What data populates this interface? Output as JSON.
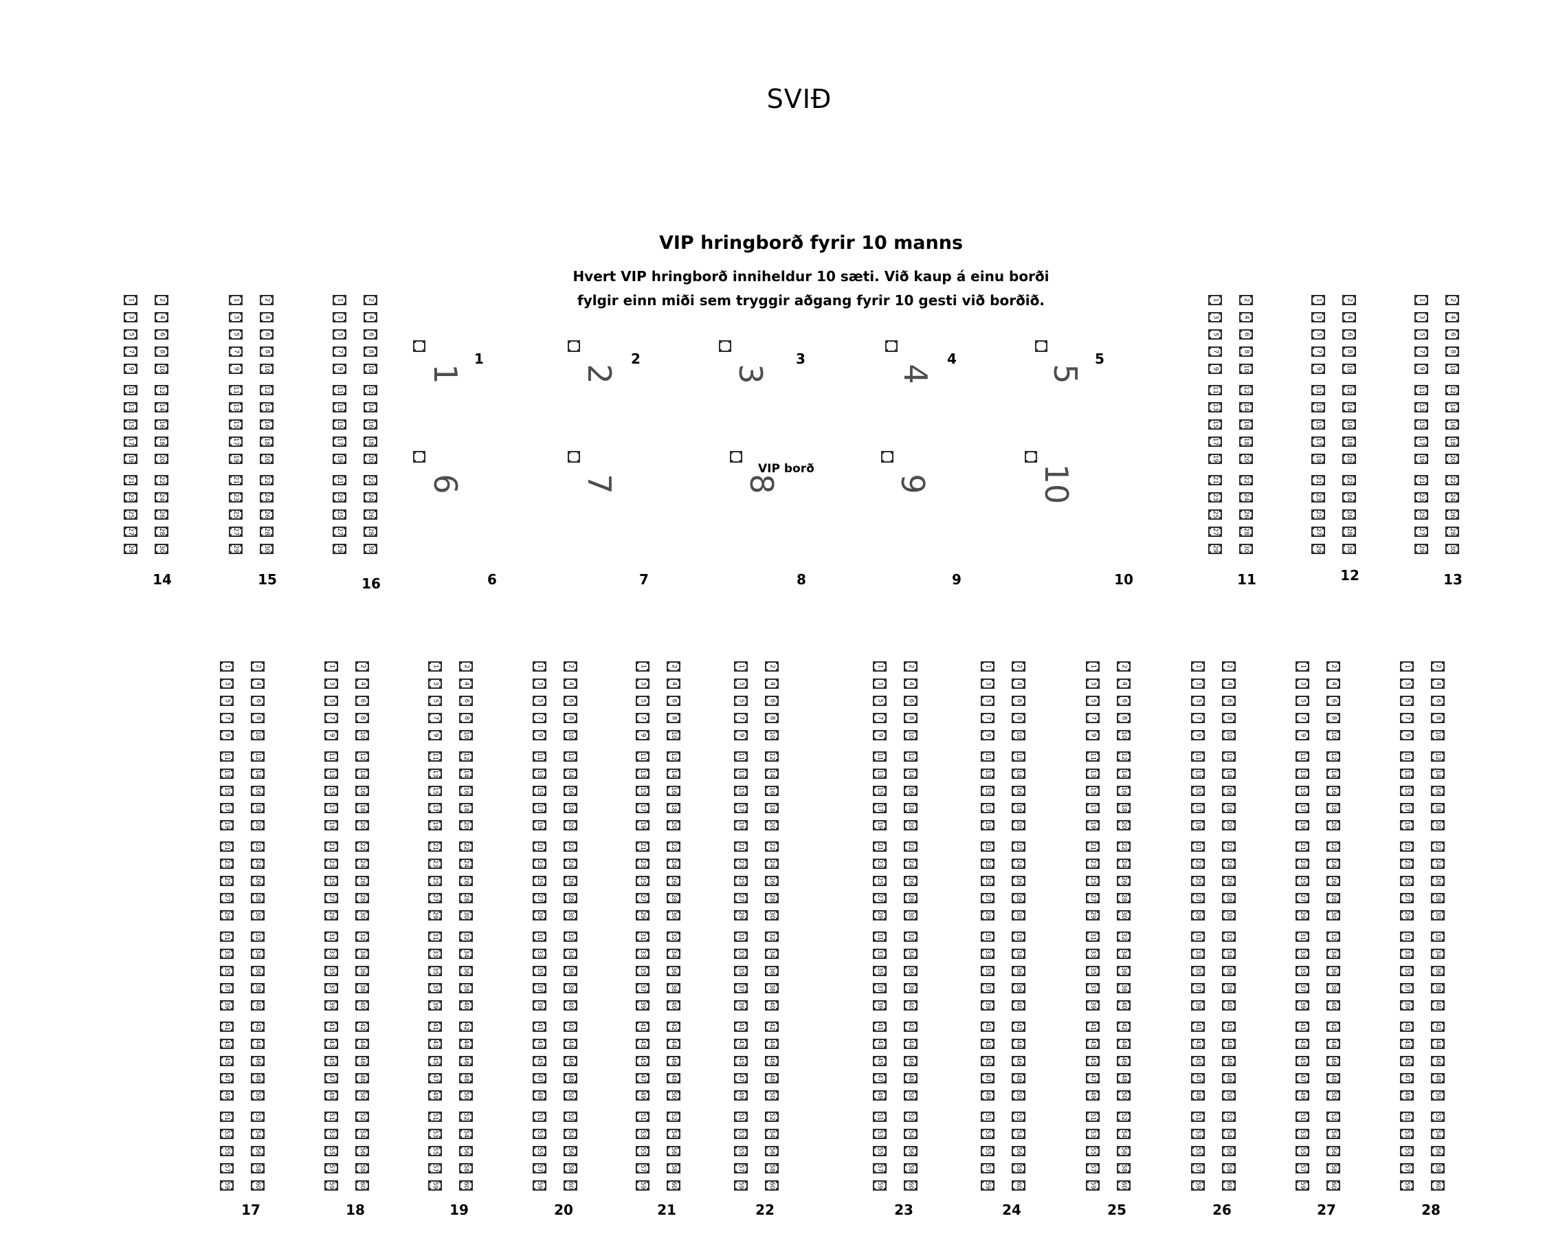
{
  "stage_label": "SVIÐ",
  "vip": {
    "title": "VIP hringborð fyrir 10 manns",
    "description_line1": "Hvert VIP hringborð inniheldur 10 sæti. Við kaup á einu borði",
    "description_line2": "fylgir einn miði sem tryggir aðgang fyrir 10 gesti við borðið.",
    "table_note": "VIP borð",
    "tables_row1": [
      {
        "number": "1"
      },
      {
        "number": "2"
      },
      {
        "number": "3"
      },
      {
        "number": "4"
      },
      {
        "number": "5"
      }
    ],
    "tables_row2": [
      {
        "number": "6"
      },
      {
        "number": "7"
      },
      {
        "number": "8"
      },
      {
        "number": "9"
      },
      {
        "number": "10"
      }
    ],
    "column_labels": [
      "6",
      "7",
      "8",
      "9",
      "10"
    ]
  },
  "sections": {
    "upper_left": [
      {
        "label": "14",
        "seats": 30
      },
      {
        "label": "15",
        "seats": 30
      },
      {
        "label": "16",
        "seats": 30
      }
    ],
    "upper_right": [
      {
        "label": "11",
        "seats": 30
      },
      {
        "label": "12",
        "seats": 30
      },
      {
        "label": "13",
        "seats": 30
      }
    ],
    "lower": [
      {
        "label": "17",
        "seats": 60
      },
      {
        "label": "18",
        "seats": 60
      },
      {
        "label": "19",
        "seats": 60
      },
      {
        "label": "20",
        "seats": 60
      },
      {
        "label": "21",
        "seats": 60
      },
      {
        "label": "22",
        "seats": 60
      },
      {
        "label": "23",
        "seats": 60
      },
      {
        "label": "24",
        "seats": 60
      },
      {
        "label": "25",
        "seats": 60
      },
      {
        "label": "26",
        "seats": 60
      },
      {
        "label": "27",
        "seats": 60
      },
      {
        "label": "28",
        "seats": 60
      }
    ],
    "numbering_scheme": "odd numbers left column, even numbers right column, top to bottom, grouped in blocks of 5 rows",
    "seat_marker_color": "#2d2d2d"
  }
}
